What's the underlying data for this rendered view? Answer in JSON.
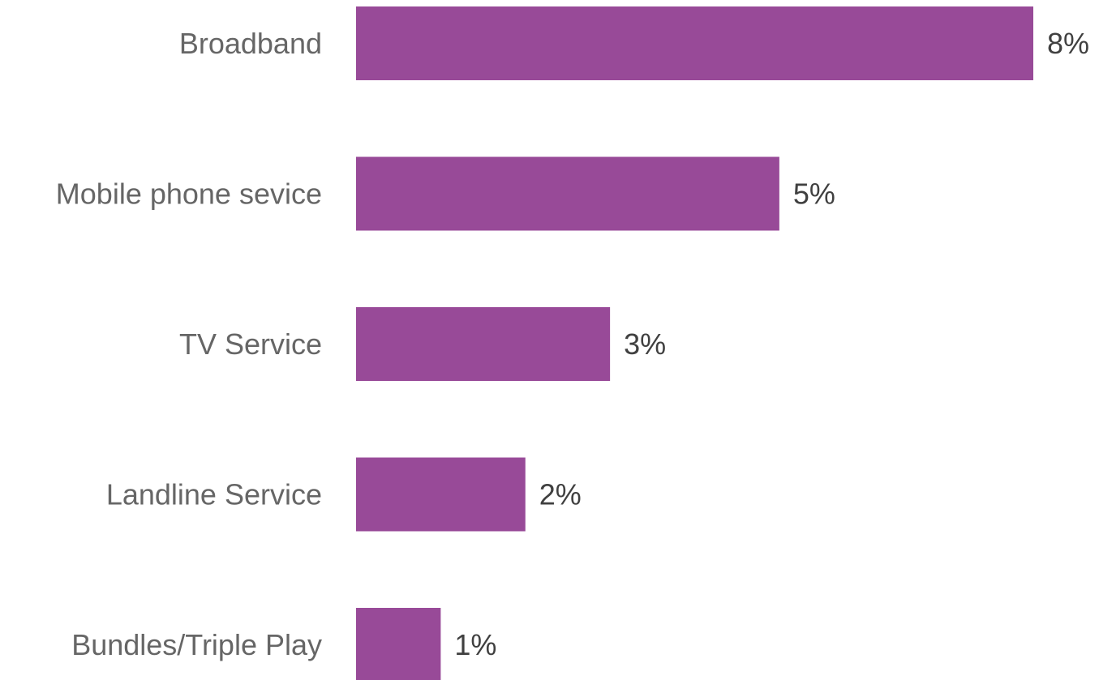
{
  "chart_data": {
    "type": "bar",
    "orientation": "horizontal",
    "categories": [
      "Broadband",
      "Mobile phone sevice",
      "TV Service",
      "Landline Service",
      "Bundles/Triple Play"
    ],
    "values": [
      8,
      5,
      3,
      2,
      1
    ],
    "value_labels": [
      "8%",
      "5%",
      "3%",
      "2%",
      "1%"
    ],
    "unit": "%",
    "xlim": [
      0,
      8
    ],
    "grid": false,
    "bar_color": "#984a98"
  }
}
